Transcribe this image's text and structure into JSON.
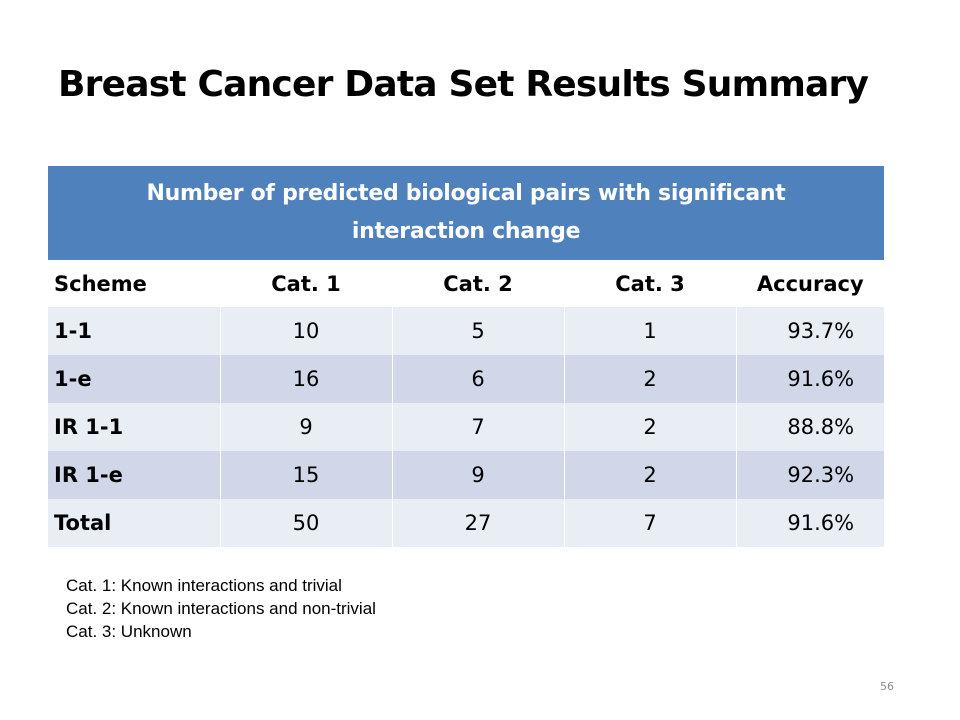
{
  "slide": {
    "title": "Breast Cancer Data Set Results Summary",
    "page_number": "56"
  },
  "table": {
    "caption": "Number of predicted biological pairs with significant interaction change",
    "headers": [
      "Scheme",
      "Cat. 1",
      "Cat. 2",
      "Cat. 3",
      "Accuracy"
    ],
    "rows": [
      [
        "1-1",
        "10",
        "5",
        "1",
        "93.7%"
      ],
      [
        "1-e",
        "16",
        "6",
        "2",
        "91.6%"
      ],
      [
        "IR 1-1",
        "9",
        "7",
        "2",
        "88.8%"
      ],
      [
        "IR 1-e",
        "15",
        "9",
        "2",
        "92.3%"
      ],
      [
        "Total",
        "50",
        "27",
        "7",
        "91.6%"
      ]
    ],
    "colors": {
      "caption_background": "#4f81bd",
      "caption_text": "#ffffff",
      "band_dark": "#cfd7e8",
      "band_light": "#e9edf4"
    }
  },
  "legend": [
    "Cat. 1: Known interactions and trivial",
    "Cat. 2: Known interactions and non-trivial",
    "Cat. 3: Unknown"
  ]
}
